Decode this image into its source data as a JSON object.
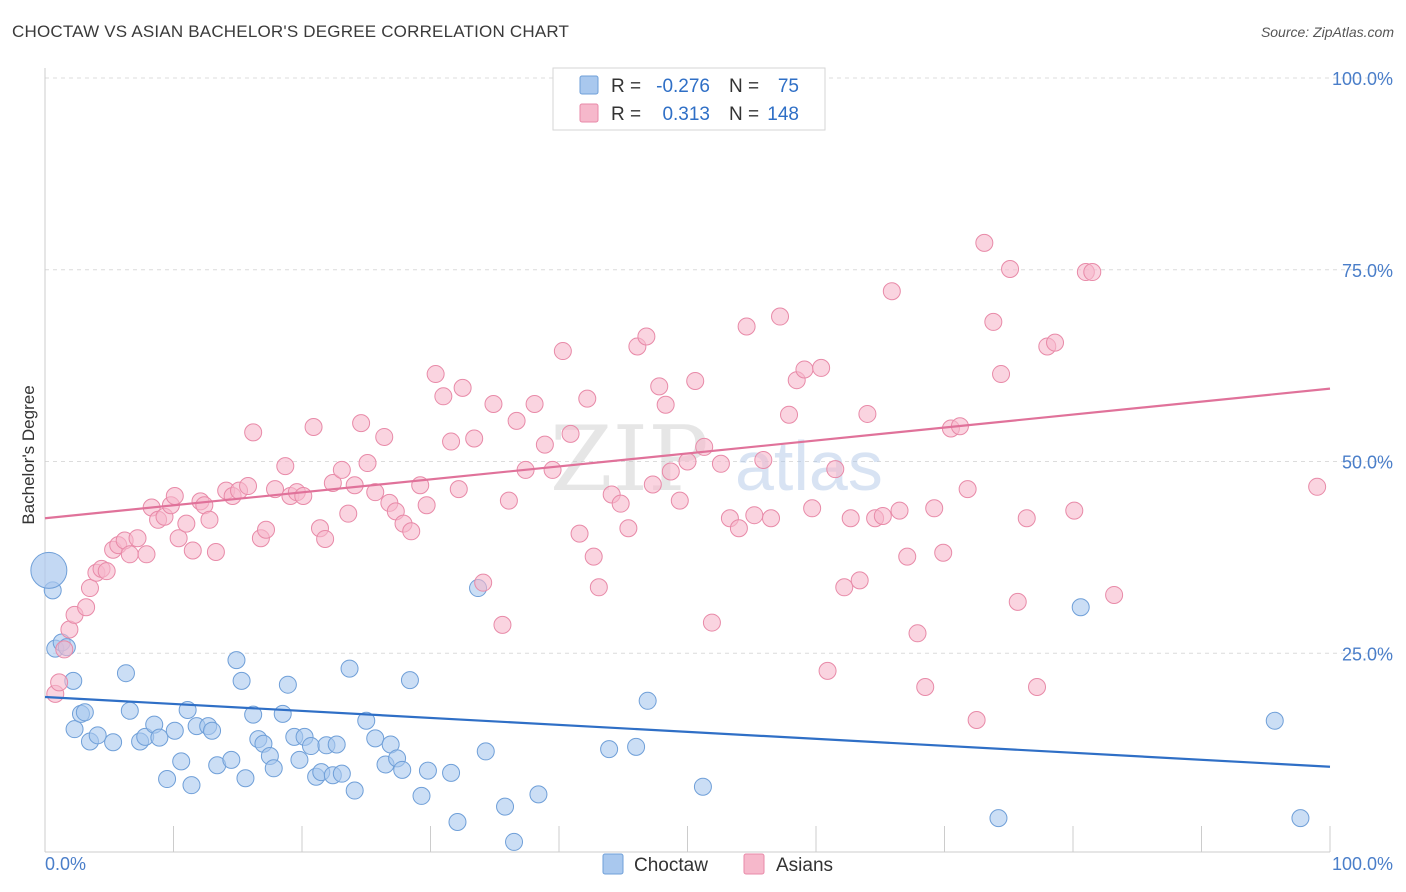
{
  "title": "CHOCTAW VS ASIAN BACHELOR'S DEGREE CORRELATION CHART",
  "source": "Source: ZipAtlas.com",
  "watermark": {
    "zip": "ZIP",
    "atlas": "atlas"
  },
  "colors": {
    "choctaw_fill": "#a9c8ee",
    "choctaw_stroke": "#6f9fd8",
    "choctaw_line": "#2f6fc6",
    "asian_fill": "#f6b8cb",
    "asian_stroke": "#e88aa8",
    "asian_line": "#e0729a",
    "value_text": "#2f6fc6"
  },
  "legend": {
    "rows": [
      {
        "r_label": "R =",
        "r_value": "-0.276",
        "n_label": "N =",
        "n_value": "75"
      },
      {
        "r_label": "R =",
        "r_value": "0.313",
        "n_label": "N =",
        "n_value": "148"
      }
    ]
  },
  "chart_data": {
    "type": "scatter",
    "title": "CHOCTAW VS ASIAN BACHELOR'S DEGREE CORRELATION CHART",
    "xlabel": "",
    "ylabel": "Bachelor's Degree",
    "xlim": [
      0,
      100
    ],
    "ylim": [
      0,
      100
    ],
    "x_tick_labels": [
      "0.0%",
      "100.0%"
    ],
    "y_tick_labels": [
      "100.0%",
      "75.0%",
      "50.0%",
      "25.0%"
    ],
    "y_ticks": [
      100,
      75,
      50,
      25
    ],
    "grid": true,
    "legend_position": "top-center",
    "series": [
      {
        "name": "Choctaw",
        "trend": [
          [
            0,
            19.3
          ],
          [
            100,
            10.2
          ]
        ],
        "points": [
          [
            0.6,
            33.2
          ],
          [
            0.8,
            25.6
          ],
          [
            1.3,
            26.4
          ],
          [
            1.7,
            25.8
          ],
          [
            2.2,
            21.4
          ],
          [
            2.3,
            15.1
          ],
          [
            2.8,
            17.1
          ],
          [
            3.1,
            17.3
          ],
          [
            3.5,
            13.5
          ],
          [
            4.1,
            14.3
          ],
          [
            5.3,
            13.4
          ],
          [
            6.3,
            22.4
          ],
          [
            6.6,
            17.5
          ],
          [
            7.4,
            13.5
          ],
          [
            7.8,
            14.1
          ],
          [
            8.5,
            15.7
          ],
          [
            8.9,
            14.0
          ],
          [
            9.5,
            8.6
          ],
          [
            10.1,
            14.9
          ],
          [
            10.6,
            10.9
          ],
          [
            11.1,
            17.6
          ],
          [
            11.4,
            7.8
          ],
          [
            11.8,
            15.5
          ],
          [
            12.7,
            15.5
          ],
          [
            13.0,
            14.9
          ],
          [
            13.4,
            10.4
          ],
          [
            14.5,
            11.1
          ],
          [
            14.9,
            24.1
          ],
          [
            15.3,
            21.4
          ],
          [
            15.6,
            8.7
          ],
          [
            16.2,
            17.0
          ],
          [
            16.6,
            13.8
          ],
          [
            17.0,
            13.2
          ],
          [
            17.5,
            11.6
          ],
          [
            17.8,
            10.0
          ],
          [
            18.5,
            17.1
          ],
          [
            18.9,
            20.9
          ],
          [
            19.4,
            14.1
          ],
          [
            19.8,
            11.1
          ],
          [
            20.2,
            14.1
          ],
          [
            20.7,
            12.9
          ],
          [
            21.1,
            8.9
          ],
          [
            21.5,
            9.5
          ],
          [
            21.9,
            13.0
          ],
          [
            22.4,
            9.1
          ],
          [
            22.7,
            13.1
          ],
          [
            23.1,
            9.3
          ],
          [
            23.7,
            23.0
          ],
          [
            24.1,
            7.1
          ],
          [
            25.0,
            16.2
          ],
          [
            25.7,
            13.9
          ],
          [
            26.5,
            10.5
          ],
          [
            26.9,
            13.1
          ],
          [
            27.4,
            11.3
          ],
          [
            27.8,
            9.8
          ],
          [
            28.4,
            21.5
          ],
          [
            29.3,
            6.4
          ],
          [
            29.8,
            9.7
          ],
          [
            31.6,
            9.4
          ],
          [
            32.1,
            3.0
          ],
          [
            33.7,
            33.5
          ],
          [
            34.3,
            12.2
          ],
          [
            35.8,
            5.0
          ],
          [
            36.5,
            0.4
          ],
          [
            38.4,
            6.6
          ],
          [
            43.9,
            12.5
          ],
          [
            46.0,
            12.8
          ],
          [
            46.9,
            18.8
          ],
          [
            51.2,
            7.6
          ],
          [
            74.2,
            3.5
          ],
          [
            80.6,
            31.0
          ],
          [
            95.7,
            16.2
          ],
          [
            97.7,
            3.5
          ]
        ]
      },
      {
        "name": "Asians",
        "trend": [
          [
            0,
            42.6
          ],
          [
            100,
            59.5
          ]
        ],
        "points": [
          [
            0.8,
            19.7
          ],
          [
            1.1,
            21.2
          ],
          [
            1.5,
            25.5
          ],
          [
            1.9,
            28.1
          ],
          [
            2.3,
            30.0
          ],
          [
            3.2,
            31.0
          ],
          [
            3.5,
            33.5
          ],
          [
            4.0,
            35.5
          ],
          [
            4.4,
            36.0
          ],
          [
            4.8,
            35.7
          ],
          [
            5.3,
            38.5
          ],
          [
            5.7,
            39.1
          ],
          [
            6.2,
            39.7
          ],
          [
            6.6,
            37.9
          ],
          [
            7.2,
            40.0
          ],
          [
            7.9,
            37.9
          ],
          [
            8.3,
            44.0
          ],
          [
            8.8,
            42.4
          ],
          [
            9.3,
            42.8
          ],
          [
            9.8,
            44.3
          ],
          [
            10.1,
            45.5
          ],
          [
            10.4,
            40.0
          ],
          [
            11.0,
            41.9
          ],
          [
            11.5,
            38.4
          ],
          [
            12.1,
            44.8
          ],
          [
            12.4,
            44.3
          ],
          [
            12.8,
            42.4
          ],
          [
            13.3,
            38.2
          ],
          [
            14.1,
            46.2
          ],
          [
            14.6,
            45.5
          ],
          [
            15.1,
            46.2
          ],
          [
            15.8,
            46.8
          ],
          [
            16.2,
            53.8
          ],
          [
            16.8,
            40.0
          ],
          [
            17.2,
            41.1
          ],
          [
            17.9,
            46.4
          ],
          [
            18.7,
            49.4
          ],
          [
            19.1,
            45.5
          ],
          [
            19.6,
            46.0
          ],
          [
            20.1,
            45.5
          ],
          [
            20.9,
            54.5
          ],
          [
            21.4,
            41.3
          ],
          [
            21.8,
            39.9
          ],
          [
            22.4,
            47.2
          ],
          [
            23.1,
            48.9
          ],
          [
            23.6,
            43.2
          ],
          [
            24.1,
            46.9
          ],
          [
            24.6,
            55.0
          ],
          [
            25.1,
            49.8
          ],
          [
            25.7,
            46.0
          ],
          [
            26.4,
            53.2
          ],
          [
            26.8,
            44.6
          ],
          [
            27.3,
            43.5
          ],
          [
            27.9,
            41.9
          ],
          [
            28.5,
            40.9
          ],
          [
            29.2,
            46.9
          ],
          [
            29.7,
            44.3
          ],
          [
            30.4,
            61.4
          ],
          [
            31.0,
            58.5
          ],
          [
            31.6,
            52.6
          ],
          [
            32.2,
            46.4
          ],
          [
            32.5,
            59.6
          ],
          [
            33.4,
            53.0
          ],
          [
            34.1,
            34.2
          ],
          [
            34.9,
            57.5
          ],
          [
            35.6,
            28.7
          ],
          [
            36.1,
            44.9
          ],
          [
            36.7,
            55.3
          ],
          [
            37.4,
            48.9
          ],
          [
            38.1,
            57.5
          ],
          [
            38.9,
            52.2
          ],
          [
            39.5,
            48.9
          ],
          [
            40.3,
            64.4
          ],
          [
            40.9,
            53.6
          ],
          [
            41.6,
            40.6
          ],
          [
            42.2,
            58.2
          ],
          [
            42.7,
            37.6
          ],
          [
            43.1,
            33.6
          ],
          [
            44.1,
            45.7
          ],
          [
            44.8,
            44.5
          ],
          [
            45.4,
            41.3
          ],
          [
            46.1,
            65.0
          ],
          [
            46.8,
            66.3
          ],
          [
            47.3,
            47.0
          ],
          [
            47.8,
            59.8
          ],
          [
            48.3,
            57.4
          ],
          [
            48.7,
            48.7
          ],
          [
            49.4,
            44.9
          ],
          [
            50.0,
            50.0
          ],
          [
            50.6,
            60.5
          ],
          [
            51.3,
            51.9
          ],
          [
            51.9,
            29.0
          ],
          [
            52.6,
            49.7
          ],
          [
            53.3,
            42.6
          ],
          [
            54.0,
            41.3
          ],
          [
            54.6,
            67.6
          ],
          [
            55.2,
            43.0
          ],
          [
            55.9,
            50.2
          ],
          [
            56.5,
            42.6
          ],
          [
            57.2,
            68.9
          ],
          [
            57.9,
            56.1
          ],
          [
            58.5,
            60.6
          ],
          [
            59.1,
            62.0
          ],
          [
            59.7,
            43.9
          ],
          [
            60.4,
            62.2
          ],
          [
            60.9,
            22.7
          ],
          [
            61.5,
            49.0
          ],
          [
            62.2,
            33.6
          ],
          [
            62.7,
            42.6
          ],
          [
            63.4,
            34.5
          ],
          [
            64.0,
            56.2
          ],
          [
            64.6,
            42.6
          ],
          [
            65.2,
            42.9
          ],
          [
            65.9,
            72.2
          ],
          [
            66.5,
            43.6
          ],
          [
            67.1,
            37.6
          ],
          [
            67.9,
            27.6
          ],
          [
            68.5,
            20.6
          ],
          [
            69.2,
            43.9
          ],
          [
            69.9,
            38.1
          ],
          [
            70.5,
            54.3
          ],
          [
            71.2,
            54.6
          ],
          [
            71.8,
            46.4
          ],
          [
            72.5,
            16.3
          ],
          [
            73.1,
            78.5
          ],
          [
            73.8,
            68.2
          ],
          [
            74.4,
            61.4
          ],
          [
            75.1,
            75.1
          ],
          [
            75.7,
            31.7
          ],
          [
            76.4,
            42.6
          ],
          [
            77.2,
            20.6
          ],
          [
            78.0,
            65.0
          ],
          [
            78.6,
            65.5
          ],
          [
            80.1,
            43.6
          ],
          [
            81.0,
            74.7
          ],
          [
            81.5,
            74.7
          ],
          [
            83.2,
            32.6
          ],
          [
            99.0,
            46.7
          ]
        ]
      }
    ]
  },
  "bottom_legend": [
    {
      "label": "Choctaw"
    },
    {
      "label": "Asians"
    }
  ]
}
